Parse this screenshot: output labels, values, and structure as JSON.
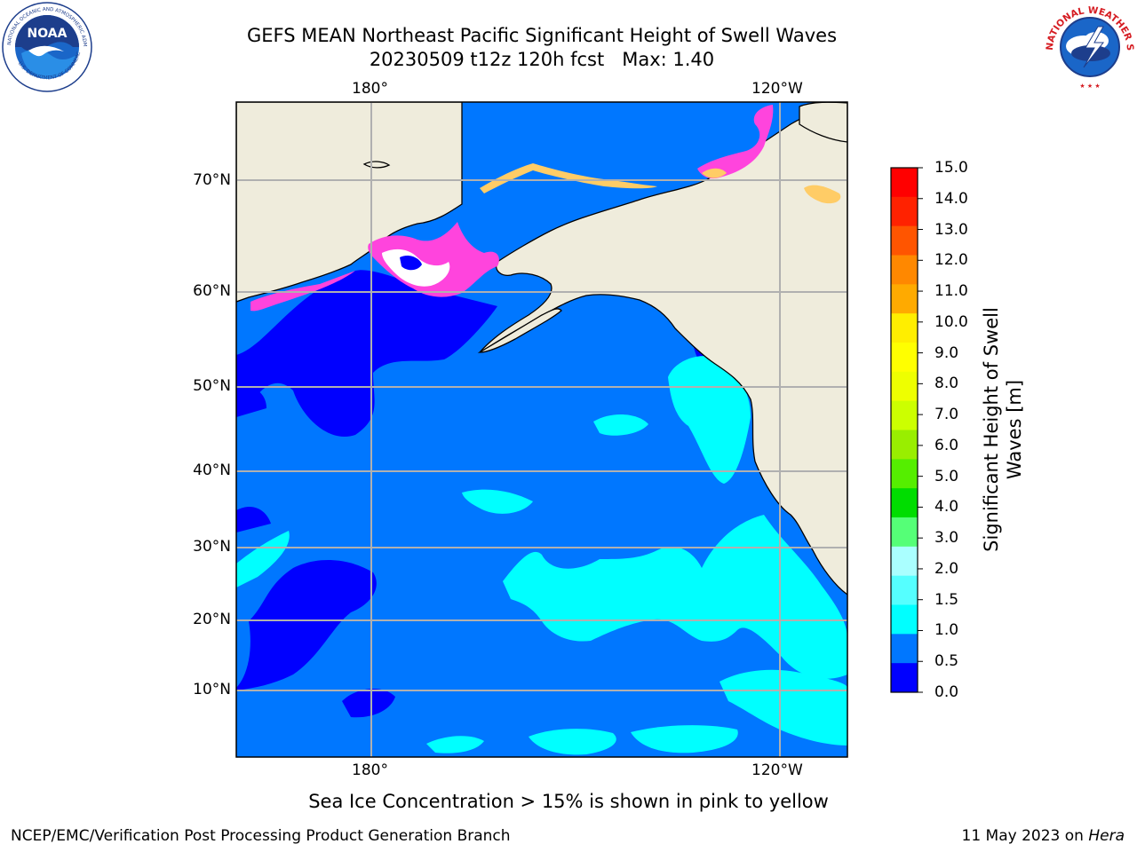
{
  "header": {
    "title_line1": "GEFS MEAN Northeast Pacific Significant Height of Swell Waves",
    "title_line2": "20230509 t12z 120h fcst   Max: 1.40"
  },
  "logos": {
    "left": "noaa-logo",
    "right": "nws-logo"
  },
  "map": {
    "lat_labels": [
      "70°N",
      "60°N",
      "50°N",
      "40°N",
      "30°N",
      "20°N",
      "10°N"
    ],
    "lon_labels_top": [
      "180°",
      "120°W"
    ],
    "lon_labels_bottom": [
      "180°",
      "120°W"
    ],
    "grid": true,
    "colors": {
      "land": "#efecdc",
      "grid": "#b0b0b0",
      "sea_0_0.5": "#0000ff",
      "sea_0.5_1.0": "#0077ff",
      "sea_1.0_1.5": "#00ffff",
      "ice": "#ff44dd"
    }
  },
  "colorbar": {
    "title": "Significant Height of Swell\nWaves [m]",
    "ticks": [
      "15.0",
      "14.0",
      "13.0",
      "12.0",
      "11.0",
      "10.0",
      "9.0",
      "8.0",
      "7.0",
      "6.0",
      "5.0",
      "4.0",
      "3.0",
      "2.0",
      "1.5",
      "1.0",
      "0.5",
      "0.0"
    ],
    "colors_top_to_bottom": [
      "#ff0000",
      "#ff2200",
      "#ff5500",
      "#ff8800",
      "#ffaa00",
      "#ffee00",
      "#ffff00",
      "#eeff00",
      "#ccff00",
      "#99ee00",
      "#55ee00",
      "#00dd00",
      "#55ff77",
      "#aaffff",
      "#55ffff",
      "#00ffff",
      "#0077ff",
      "#0000ff"
    ]
  },
  "chart_data": {
    "type": "heatmap",
    "title": "GEFS MEAN Northeast Pacific Significant Height of Swell Waves",
    "subtitle": "20230509 t12z 120h fcst   Max: 1.40",
    "max_value": 1.4,
    "units": "m",
    "colorbar_levels": [
      0.0,
      0.5,
      1.0,
      1.5,
      2.0,
      3.0,
      4.0,
      5.0,
      6.0,
      7.0,
      8.0,
      9.0,
      10.0,
      11.0,
      12.0,
      13.0,
      14.0,
      15.0
    ],
    "colorbar_label": "Significant Height of Swell\nWaves [m]"
  },
  "note": "Sea Ice Concentration > 15% is shown in pink to yellow",
  "footer": {
    "left": "NCEP/EMC/Verification Post Processing Product Generation Branch",
    "right_prefix": "11 May 2023 on",
    "right_machine": "Hera"
  }
}
